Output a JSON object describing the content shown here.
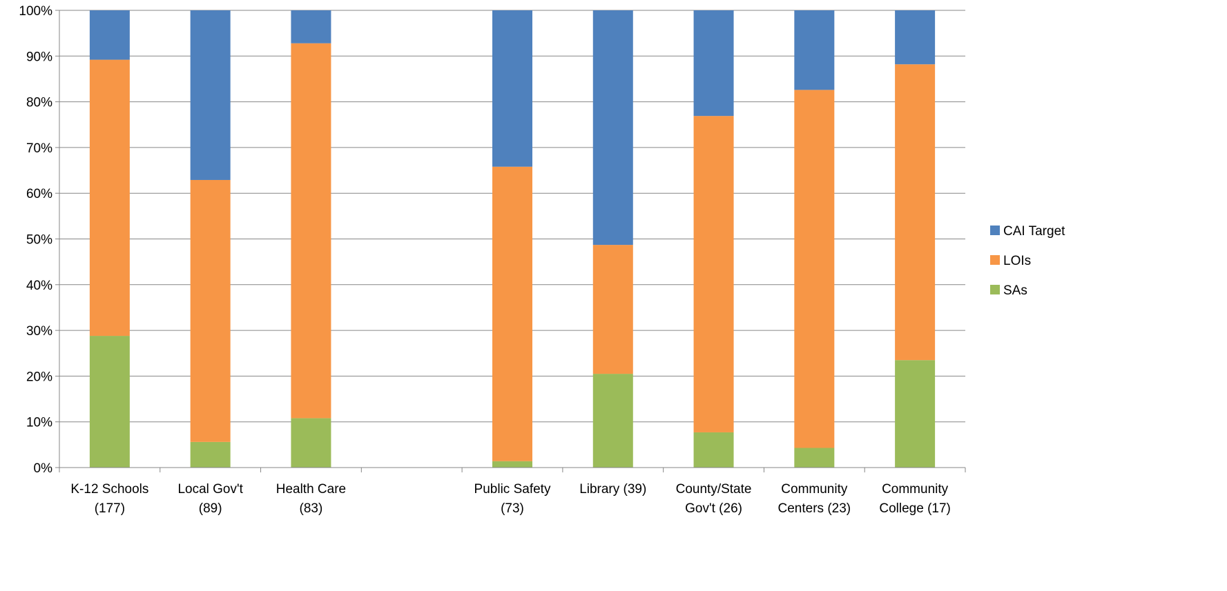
{
  "chart_data": {
    "type": "bar",
    "stacking": "percent",
    "categories": [
      [
        "K-12 Schools",
        "(177)"
      ],
      [
        "Local Gov't",
        "(89)"
      ],
      [
        "Health Care",
        "(83)"
      ],
      [
        "",
        ""
      ],
      [
        "Public Safety",
        "(73)"
      ],
      [
        "Library (39)",
        ""
      ],
      [
        "County/State",
        "Gov't (26)"
      ],
      [
        "Community",
        "Centers (23)"
      ],
      [
        "Community",
        "College (17)"
      ]
    ],
    "series": [
      {
        "name": "SAs",
        "color": "#9BBB59",
        "values": [
          28.8,
          5.6,
          10.8,
          null,
          1.4,
          20.5,
          7.7,
          4.3,
          23.5
        ]
      },
      {
        "name": "LOIs",
        "color": "#F79646",
        "values": [
          60.4,
          57.3,
          82.0,
          null,
          64.4,
          28.2,
          69.2,
          78.3,
          64.7
        ]
      },
      {
        "name": "CAI Target",
        "color": "#4F81BD",
        "values": [
          10.8,
          37.1,
          7.2,
          null,
          34.2,
          51.3,
          23.1,
          17.4,
          11.8
        ]
      }
    ],
    "yticks": [
      "0%",
      "10%",
      "20%",
      "30%",
      "40%",
      "50%",
      "60%",
      "70%",
      "80%",
      "90%",
      "100%"
    ],
    "ylim": [
      0,
      100
    ],
    "grid": true,
    "legend": {
      "position": "right",
      "order": [
        "CAI Target",
        "LOIs",
        "SAs"
      ]
    },
    "title": "",
    "xlabel": "",
    "ylabel": ""
  }
}
